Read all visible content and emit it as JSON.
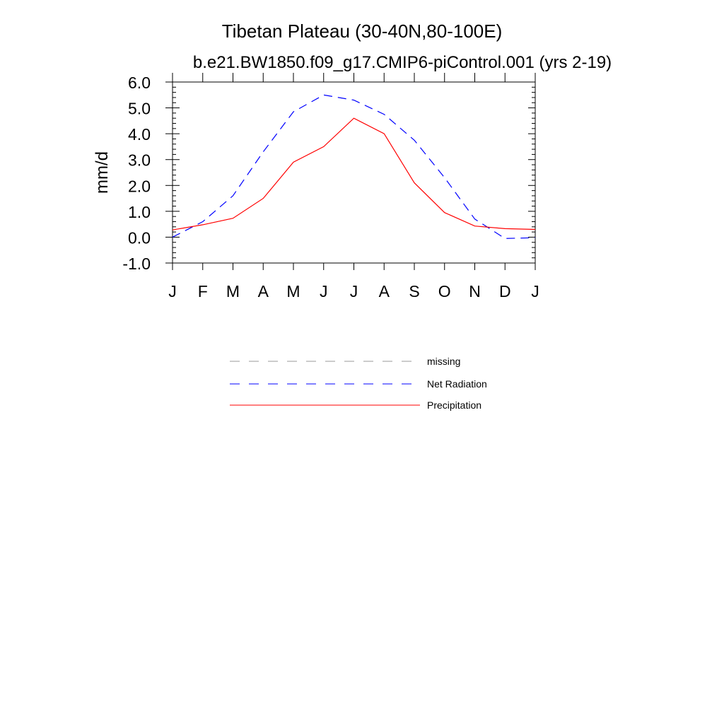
{
  "chart_data": {
    "type": "line",
    "title": "Tibetan Plateau (30-40N,80-100E)",
    "subtitle": "b.e21.BW1850.f09_g17.CMIP6-piControl.001 (yrs 2-19)",
    "xlabel": "",
    "ylabel": "mm/d",
    "ylim": [
      -1.0,
      6.0
    ],
    "y_ticks": [
      "-1.0",
      "0.0",
      "1.0",
      "2.0",
      "3.0",
      "4.0",
      "5.0",
      "6.0"
    ],
    "x": [
      0,
      1,
      2,
      3,
      4,
      5,
      6,
      7,
      8,
      9,
      10,
      11,
      12
    ],
    "x_ticks": [
      "J",
      "F",
      "M",
      "A",
      "M",
      "J",
      "J",
      "A",
      "S",
      "O",
      "N",
      "D",
      "J"
    ],
    "grid": false,
    "legend_position": "bottom",
    "series": [
      {
        "name": "Net Radiation",
        "color": "#0000ff",
        "style": "dashed",
        "values": [
          0.0,
          0.6,
          1.6,
          3.3,
          4.85,
          5.5,
          5.3,
          4.75,
          3.75,
          2.3,
          0.7,
          -0.05,
          -0.02
        ]
      },
      {
        "name": "Precipitation",
        "color": "#ff0000",
        "style": "solid",
        "values": [
          0.28,
          0.48,
          0.73,
          1.5,
          2.9,
          3.5,
          4.6,
          4.0,
          2.1,
          0.95,
          0.43,
          0.33,
          0.3
        ]
      }
    ],
    "legend": [
      {
        "label": "missing",
        "color": "#999999",
        "style": "dashed"
      },
      {
        "label": "Net Radiation",
        "color": "#0000ff",
        "style": "dashed"
      },
      {
        "label": "Precipitation",
        "color": "#ff0000",
        "style": "solid"
      }
    ]
  }
}
